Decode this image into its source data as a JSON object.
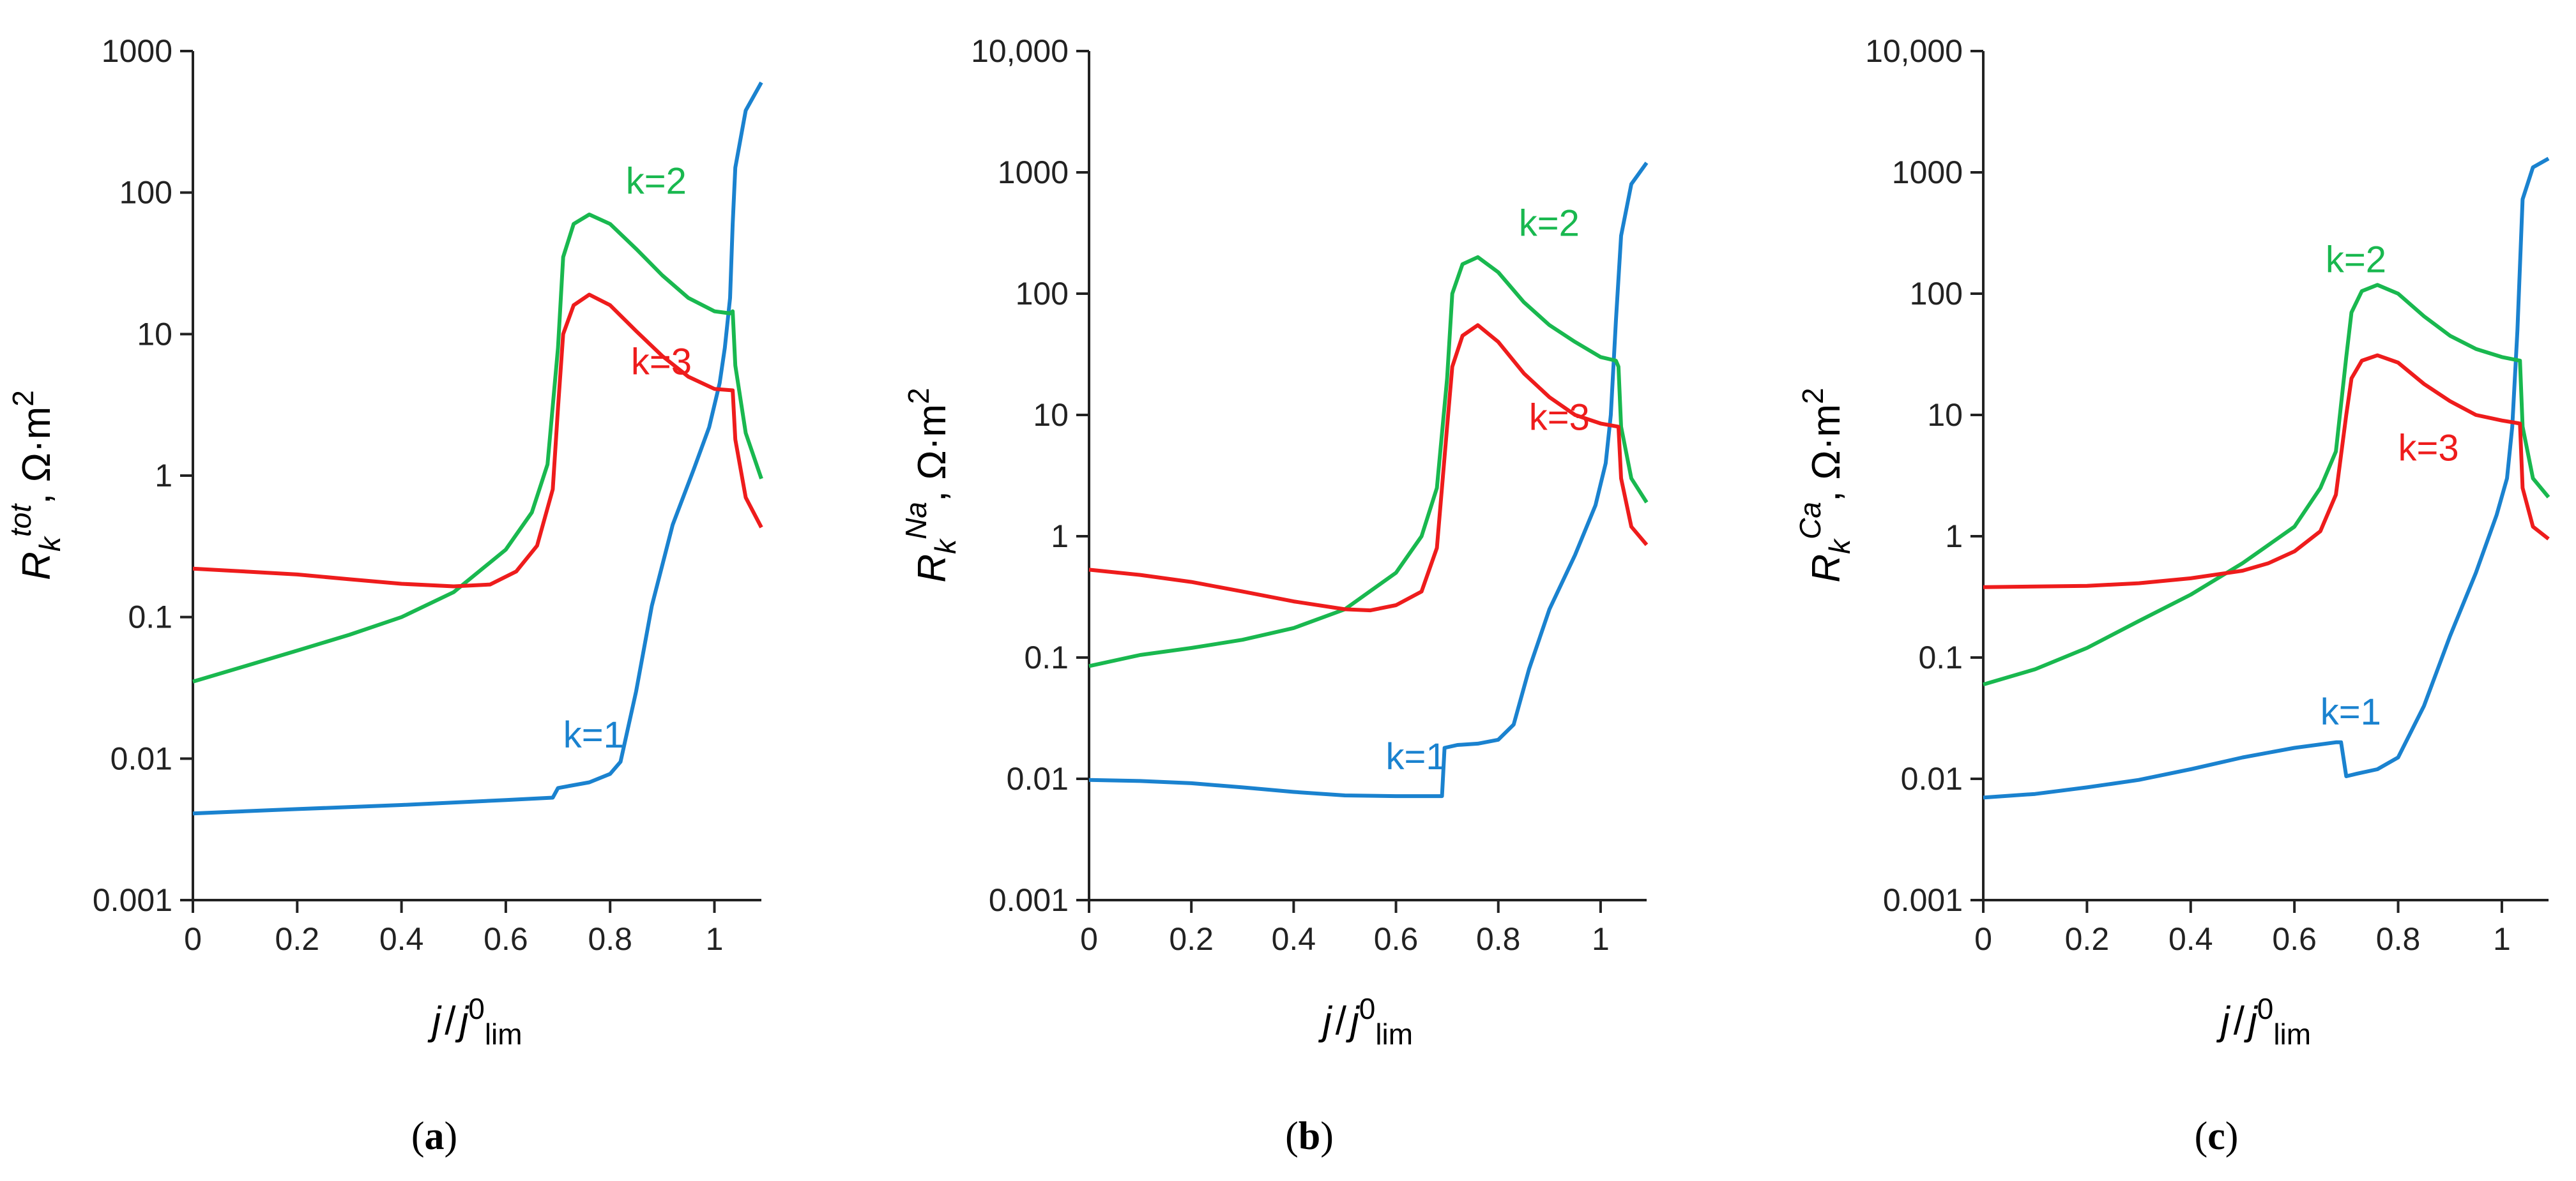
{
  "colors": {
    "k1": "#1a82cf",
    "k2": "#19b84f",
    "k3": "#ee1c1c",
    "axis": "#222222"
  },
  "xlabel": {
    "j": "j",
    "slash": "/",
    "j0": "j",
    "sup": "0",
    "sub": "lim"
  },
  "chart_data": [
    {
      "type": "line",
      "panel": "(a)",
      "panel_open": "(",
      "panel_letter": "a",
      "panel_close": ")",
      "ylabel": {
        "R": "R",
        "sub": "k",
        "sup": "tot",
        "unit": ", Ω·m",
        "pow": "2"
      },
      "y_scale": "log",
      "ylim": [
        0.001,
        1000
      ],
      "xlim": [
        0,
        1.09
      ],
      "y_ticks": [
        0.001,
        0.01,
        0.1,
        1,
        10,
        100,
        1000
      ],
      "y_tick_labels": [
        "0.001",
        "0.01",
        "0.1",
        "1",
        "10",
        "100",
        "1000"
      ],
      "x_ticks": [
        0,
        0.2,
        0.4,
        0.6,
        0.8,
        1
      ],
      "x_tick_labels": [
        "0",
        "0.2",
        "0.4",
        "0.6",
        "0.8",
        "1"
      ],
      "series": [
        {
          "name": "k=1",
          "color_key": "k1",
          "label": {
            "x": 0.71,
            "y": 0.012
          },
          "points": [
            [
              0,
              0.0041
            ],
            [
              0.2,
              0.0044
            ],
            [
              0.4,
              0.0047
            ],
            [
              0.6,
              0.0051
            ],
            [
              0.69,
              0.0053
            ],
            [
              0.7,
              0.0062
            ],
            [
              0.76,
              0.0068
            ],
            [
              0.8,
              0.0078
            ],
            [
              0.82,
              0.0095
            ],
            [
              0.85,
              0.03
            ],
            [
              0.88,
              0.12
            ],
            [
              0.92,
              0.45
            ],
            [
              0.96,
              1.1
            ],
            [
              0.99,
              2.2
            ],
            [
              1.01,
              4.5
            ],
            [
              1.02,
              8
            ],
            [
              1.03,
              18
            ],
            [
              1.035,
              60
            ],
            [
              1.04,
              150
            ],
            [
              1.06,
              380
            ],
            [
              1.09,
              600
            ]
          ]
        },
        {
          "name": "k=2",
          "color_key": "k2",
          "label": {
            "x": 0.83,
            "y": 98
          },
          "points": [
            [
              0,
              0.035
            ],
            [
              0.1,
              0.045
            ],
            [
              0.2,
              0.058
            ],
            [
              0.3,
              0.075
            ],
            [
              0.4,
              0.1
            ],
            [
              0.5,
              0.15
            ],
            [
              0.6,
              0.3
            ],
            [
              0.65,
              0.55
            ],
            [
              0.68,
              1.2
            ],
            [
              0.7,
              8
            ],
            [
              0.71,
              35
            ],
            [
              0.73,
              60
            ],
            [
              0.76,
              70
            ],
            [
              0.8,
              60
            ],
            [
              0.85,
              40
            ],
            [
              0.9,
              26
            ],
            [
              0.95,
              18
            ],
            [
              1.0,
              14.5
            ],
            [
              1.03,
              14
            ],
            [
              1.035,
              14.5
            ],
            [
              1.04,
              6
            ],
            [
              1.06,
              2
            ],
            [
              1.09,
              0.95
            ]
          ]
        },
        {
          "name": "k=3",
          "color_key": "k3",
          "label": {
            "x": 0.84,
            "y": 5.2
          },
          "points": [
            [
              0,
              0.22
            ],
            [
              0.1,
              0.21
            ],
            [
              0.2,
              0.2
            ],
            [
              0.3,
              0.185
            ],
            [
              0.4,
              0.172
            ],
            [
              0.5,
              0.165
            ],
            [
              0.57,
              0.17
            ],
            [
              0.62,
              0.21
            ],
            [
              0.66,
              0.32
            ],
            [
              0.69,
              0.8
            ],
            [
              0.7,
              3
            ],
            [
              0.71,
              10
            ],
            [
              0.73,
              16
            ],
            [
              0.76,
              19
            ],
            [
              0.8,
              16
            ],
            [
              0.85,
              10.5
            ],
            [
              0.9,
              7
            ],
            [
              0.95,
              5
            ],
            [
              1.0,
              4.1
            ],
            [
              1.035,
              4
            ],
            [
              1.04,
              1.8
            ],
            [
              1.06,
              0.7
            ],
            [
              1.09,
              0.43
            ]
          ]
        }
      ]
    },
    {
      "type": "line",
      "panel": "(b)",
      "panel_open": "(",
      "panel_letter": "b",
      "panel_close": ")",
      "ylabel": {
        "R": "R",
        "sub": "k",
        "sup": "Na",
        "unit": ", Ω·m",
        "pow": "2"
      },
      "y_scale": "log",
      "ylim": [
        0.001,
        10000
      ],
      "xlim": [
        0,
        1.09
      ],
      "y_ticks": [
        0.001,
        0.01,
        0.1,
        1,
        10,
        100,
        1000,
        10000
      ],
      "y_tick_labels": [
        "0.001",
        "0.01",
        "0.1",
        "1",
        "10",
        "100",
        "1000",
        "10,000"
      ],
      "x_ticks": [
        0,
        0.2,
        0.4,
        0.6,
        0.8,
        1
      ],
      "x_tick_labels": [
        "0",
        "0.2",
        "0.4",
        "0.6",
        "0.8",
        "1"
      ],
      "series": [
        {
          "name": "k=1",
          "color_key": "k1",
          "label": {
            "x": 0.58,
            "y": 0.012
          },
          "points": [
            [
              0,
              0.0098
            ],
            [
              0.1,
              0.0096
            ],
            [
              0.2,
              0.0092
            ],
            [
              0.3,
              0.0085
            ],
            [
              0.4,
              0.0078
            ],
            [
              0.5,
              0.0073
            ],
            [
              0.6,
              0.0072
            ],
            [
              0.69,
              0.0072
            ],
            [
              0.695,
              0.018
            ],
            [
              0.72,
              0.019
            ],
            [
              0.76,
              0.0195
            ],
            [
              0.8,
              0.021
            ],
            [
              0.83,
              0.028
            ],
            [
              0.86,
              0.08
            ],
            [
              0.9,
              0.25
            ],
            [
              0.95,
              0.7
            ],
            [
              0.99,
              1.8
            ],
            [
              1.01,
              4
            ],
            [
              1.02,
              10
            ],
            [
              1.03,
              60
            ],
            [
              1.04,
              300
            ],
            [
              1.06,
              800
            ],
            [
              1.09,
              1200
            ]
          ]
        },
        {
          "name": "k=2",
          "color_key": "k2",
          "label": {
            "x": 0.84,
            "y": 300
          },
          "points": [
            [
              0,
              0.085
            ],
            [
              0.1,
              0.105
            ],
            [
              0.2,
              0.12
            ],
            [
              0.3,
              0.14
            ],
            [
              0.4,
              0.175
            ],
            [
              0.5,
              0.25
            ],
            [
              0.6,
              0.5
            ],
            [
              0.65,
              1.0
            ],
            [
              0.68,
              2.5
            ],
            [
              0.7,
              20
            ],
            [
              0.71,
              100
            ],
            [
              0.73,
              175
            ],
            [
              0.76,
              200
            ],
            [
              0.8,
              150
            ],
            [
              0.85,
              85
            ],
            [
              0.9,
              55
            ],
            [
              0.95,
              40
            ],
            [
              1.0,
              30
            ],
            [
              1.03,
              28
            ],
            [
              1.035,
              25
            ],
            [
              1.04,
              8
            ],
            [
              1.06,
              3
            ],
            [
              1.09,
              1.9
            ]
          ]
        },
        {
          "name": "k=3",
          "color_key": "k3",
          "label": {
            "x": 0.86,
            "y": 7.5
          },
          "points": [
            [
              0,
              0.53
            ],
            [
              0.1,
              0.48
            ],
            [
              0.2,
              0.42
            ],
            [
              0.3,
              0.35
            ],
            [
              0.4,
              0.29
            ],
            [
              0.5,
              0.25
            ],
            [
              0.55,
              0.245
            ],
            [
              0.6,
              0.27
            ],
            [
              0.65,
              0.35
            ],
            [
              0.68,
              0.8
            ],
            [
              0.7,
              8
            ],
            [
              0.71,
              25
            ],
            [
              0.73,
              45
            ],
            [
              0.76,
              55
            ],
            [
              0.8,
              40
            ],
            [
              0.85,
              22
            ],
            [
              0.9,
              14
            ],
            [
              0.95,
              10
            ],
            [
              1.0,
              8.5
            ],
            [
              1.035,
              8
            ],
            [
              1.04,
              3
            ],
            [
              1.06,
              1.2
            ],
            [
              1.09,
              0.85
            ]
          ]
        }
      ]
    },
    {
      "type": "line",
      "panel": "(c)",
      "panel_open": "(",
      "panel_letter": "c",
      "panel_close": ")",
      "ylabel": {
        "R": "R",
        "sub": "k",
        "sup": "Ca",
        "unit": ", Ω·m",
        "pow": "2"
      },
      "y_scale": "log",
      "ylim": [
        0.001,
        10000
      ],
      "xlim": [
        0,
        1.09
      ],
      "y_ticks": [
        0.001,
        0.01,
        0.1,
        1,
        10,
        100,
        1000,
        10000
      ],
      "y_tick_labels": [
        "0.001",
        "0.01",
        "0.1",
        "1",
        "10",
        "100",
        "1000",
        "10,000"
      ],
      "x_ticks": [
        0,
        0.2,
        0.4,
        0.6,
        0.8,
        1
      ],
      "x_tick_labels": [
        "0",
        "0.2",
        "0.4",
        "0.6",
        "0.8",
        "1"
      ],
      "series": [
        {
          "name": "k=1",
          "color_key": "k1",
          "label": {
            "x": 0.65,
            "y": 0.028
          },
          "points": [
            [
              0,
              0.007
            ],
            [
              0.1,
              0.0075
            ],
            [
              0.2,
              0.0085
            ],
            [
              0.3,
              0.0098
            ],
            [
              0.4,
              0.012
            ],
            [
              0.5,
              0.015
            ],
            [
              0.6,
              0.018
            ],
            [
              0.68,
              0.02
            ],
            [
              0.69,
              0.02
            ],
            [
              0.7,
              0.0105
            ],
            [
              0.72,
              0.011
            ],
            [
              0.76,
              0.012
            ],
            [
              0.8,
              0.015
            ],
            [
              0.85,
              0.04
            ],
            [
              0.9,
              0.15
            ],
            [
              0.95,
              0.5
            ],
            [
              0.99,
              1.5
            ],
            [
              1.01,
              3
            ],
            [
              1.02,
              8
            ],
            [
              1.03,
              50
            ],
            [
              1.04,
              600
            ],
            [
              1.06,
              1100
            ],
            [
              1.09,
              1300
            ]
          ]
        },
        {
          "name": "k=2",
          "color_key": "k2",
          "label": {
            "x": 0.66,
            "y": 150
          },
          "points": [
            [
              0,
              0.06
            ],
            [
              0.1,
              0.08
            ],
            [
              0.2,
              0.12
            ],
            [
              0.3,
              0.2
            ],
            [
              0.4,
              0.33
            ],
            [
              0.5,
              0.6
            ],
            [
              0.6,
              1.2
            ],
            [
              0.65,
              2.5
            ],
            [
              0.68,
              5
            ],
            [
              0.7,
              30
            ],
            [
              0.71,
              70
            ],
            [
              0.73,
              105
            ],
            [
              0.76,
              118
            ],
            [
              0.8,
              100
            ],
            [
              0.85,
              65
            ],
            [
              0.9,
              45
            ],
            [
              0.95,
              35
            ],
            [
              1.0,
              30
            ],
            [
              1.035,
              28
            ],
            [
              1.04,
              8
            ],
            [
              1.06,
              3
            ],
            [
              1.09,
              2.1
            ]
          ]
        },
        {
          "name": "k=3",
          "color_key": "k3",
          "label": {
            "x": 0.8,
            "y": 4.2
          },
          "points": [
            [
              0,
              0.38
            ],
            [
              0.2,
              0.39
            ],
            [
              0.3,
              0.41
            ],
            [
              0.4,
              0.45
            ],
            [
              0.5,
              0.52
            ],
            [
              0.55,
              0.6
            ],
            [
              0.6,
              0.75
            ],
            [
              0.65,
              1.1
            ],
            [
              0.68,
              2.2
            ],
            [
              0.7,
              10
            ],
            [
              0.71,
              20
            ],
            [
              0.73,
              28
            ],
            [
              0.76,
              31
            ],
            [
              0.8,
              27
            ],
            [
              0.85,
              18
            ],
            [
              0.9,
              13
            ],
            [
              0.95,
              10
            ],
            [
              1.0,
              9
            ],
            [
              1.035,
              8.5
            ],
            [
              1.04,
              2.5
            ],
            [
              1.06,
              1.2
            ],
            [
              1.09,
              0.95
            ]
          ]
        }
      ]
    }
  ]
}
